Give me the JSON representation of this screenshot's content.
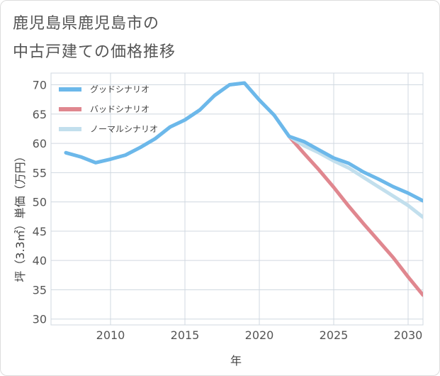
{
  "title_lines": [
    "鹿児島県鹿児島市の",
    "中古戸建ての価格推移"
  ],
  "chart_data": {
    "type": "line",
    "xlabel": "年",
    "ylabel": "坪（3.3㎡）単価（万円）",
    "xlim": [
      2006,
      2031
    ],
    "ylim": [
      29,
      72
    ],
    "x_ticks": [
      2010,
      2015,
      2020,
      2025,
      2030
    ],
    "y_ticks": [
      30,
      35,
      40,
      45,
      50,
      55,
      60,
      65,
      70
    ],
    "grid": true,
    "legend_position": "top-left",
    "series": [
      {
        "name": "グッドシナリオ",
        "color": "#6cb8ea",
        "x": [
          2007,
          2008,
          2009,
          2010,
          2011,
          2012,
          2013,
          2014,
          2015,
          2016,
          2017,
          2018,
          2019,
          2020,
          2021,
          2022,
          2023,
          2024,
          2025,
          2026,
          2027,
          2028,
          2029,
          2030,
          2031
        ],
        "y": [
          58.4,
          57.7,
          56.7,
          57.3,
          58.0,
          59.3,
          60.8,
          62.8,
          64.0,
          65.7,
          68.2,
          70.0,
          70.3,
          67.4,
          64.8,
          61.2,
          60.3,
          58.9,
          57.5,
          56.6,
          55.1,
          53.9,
          52.6,
          51.5,
          50.2
        ]
      },
      {
        "name": "バッドシナリオ",
        "color": "#e0878f",
        "x": [
          2022,
          2023,
          2024,
          2025,
          2026,
          2027,
          2028,
          2029,
          2030,
          2031
        ],
        "y": [
          61.2,
          58.3,
          55.5,
          52.5,
          49.3,
          46.3,
          43.4,
          40.5,
          37.2,
          34.1
        ]
      },
      {
        "name": "ノーマルシナリオ",
        "color": "#c2dfed",
        "x": [
          2007,
          2008,
          2009,
          2010,
          2011,
          2012,
          2013,
          2014,
          2015,
          2016,
          2017,
          2018,
          2019,
          2020,
          2021,
          2022,
          2023,
          2024,
          2025,
          2026,
          2027,
          2028,
          2029,
          2030,
          2031
        ],
        "y": [
          58.4,
          57.7,
          56.7,
          57.3,
          58.0,
          59.3,
          60.8,
          62.8,
          64.0,
          65.7,
          68.2,
          70.0,
          70.3,
          67.4,
          64.8,
          61.2,
          59.6,
          58.4,
          57.0,
          55.8,
          54.2,
          52.6,
          51.0,
          49.4,
          47.4
        ]
      }
    ]
  }
}
